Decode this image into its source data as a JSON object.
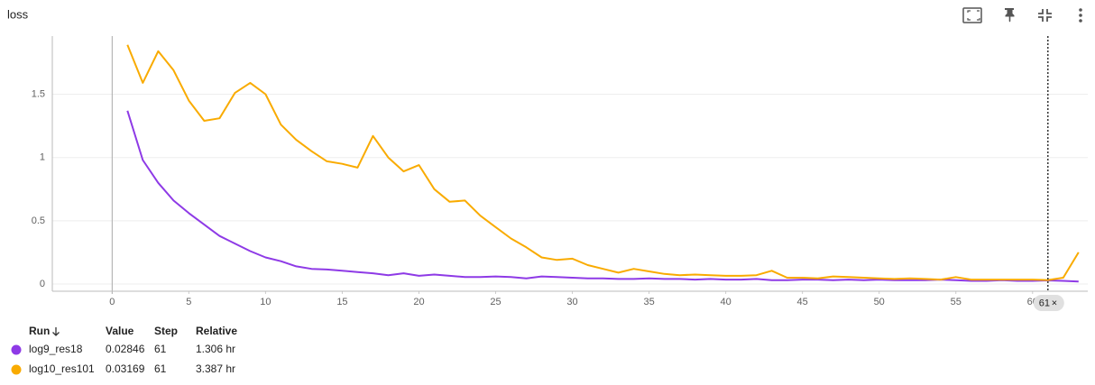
{
  "panel_title": "loss",
  "chart_data": {
    "type": "line",
    "x": [
      1,
      2,
      3,
      4,
      5,
      6,
      7,
      8,
      9,
      10,
      11,
      12,
      13,
      14,
      15,
      16,
      17,
      18,
      19,
      20,
      21,
      22,
      23,
      24,
      25,
      26,
      27,
      28,
      29,
      30,
      31,
      32,
      33,
      34,
      35,
      36,
      37,
      38,
      39,
      40,
      41,
      42,
      43,
      44,
      45,
      46,
      47,
      48,
      49,
      50,
      51,
      52,
      53,
      54,
      55,
      56,
      57,
      58,
      59,
      60,
      61,
      62,
      63
    ],
    "series": [
      {
        "name": "log9_res18",
        "color": "#8e3ae6",
        "values": [
          1.37,
          0.98,
          0.8,
          0.66,
          0.56,
          0.47,
          0.38,
          0.32,
          0.26,
          0.21,
          0.18,
          0.14,
          0.12,
          0.115,
          0.105,
          0.095,
          0.085,
          0.07,
          0.085,
          0.065,
          0.075,
          0.065,
          0.055,
          0.055,
          0.06,
          0.055,
          0.045,
          0.06,
          0.055,
          0.05,
          0.045,
          0.045,
          0.04,
          0.04,
          0.045,
          0.04,
          0.04,
          0.035,
          0.04,
          0.035,
          0.035,
          0.04,
          0.03,
          0.03,
          0.035,
          0.035,
          0.03,
          0.035,
          0.03,
          0.035,
          0.03,
          0.03,
          0.03,
          0.035,
          0.03,
          0.025,
          0.025,
          0.03,
          0.025,
          0.025,
          0.02846,
          0.025,
          0.02
        ]
      },
      {
        "name": "log10_res101",
        "color": "#f9ab00",
        "values": [
          1.89,
          1.59,
          1.84,
          1.69,
          1.45,
          1.29,
          1.31,
          1.51,
          1.59,
          1.5,
          1.26,
          1.14,
          1.05,
          0.97,
          0.95,
          0.92,
          1.17,
          1.0,
          0.89,
          0.94,
          0.75,
          0.65,
          0.66,
          0.54,
          0.45,
          0.36,
          0.29,
          0.21,
          0.19,
          0.2,
          0.15,
          0.12,
          0.09,
          0.12,
          0.1,
          0.08,
          0.07,
          0.075,
          0.07,
          0.065,
          0.065,
          0.07,
          0.105,
          0.05,
          0.05,
          0.045,
          0.06,
          0.055,
          0.05,
          0.045,
          0.04,
          0.045,
          0.04,
          0.035,
          0.055,
          0.035,
          0.035,
          0.035,
          0.035,
          0.035,
          0.03169,
          0.05,
          0.25
        ]
      }
    ],
    "xlim": [
      -3.9,
      63.6
    ],
    "ylim": [
      -0.057,
      1.96
    ],
    "xticks": [
      0,
      5,
      10,
      15,
      20,
      25,
      30,
      35,
      40,
      45,
      50,
      55,
      60
    ],
    "yticks": [
      0,
      0.5,
      1,
      1.5
    ],
    "grid": true,
    "hover_step": 61
  },
  "table": {
    "headers": [
      "Run",
      "Value",
      "Step",
      "Relative"
    ],
    "rows": [
      [
        "log9_res18",
        "0.02846",
        "61",
        "1.306 hr"
      ],
      [
        "log10_res101",
        "0.03169",
        "61",
        "3.387 hr"
      ]
    ]
  }
}
